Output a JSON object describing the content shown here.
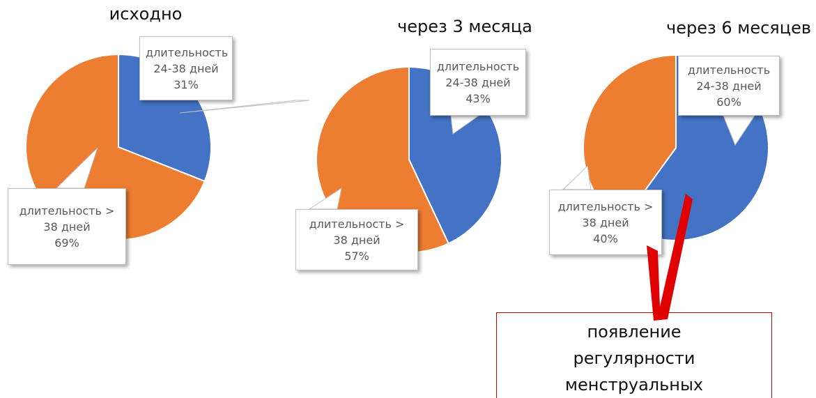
{
  "chart_data": [
    {
      "type": "pie",
      "title": "исходно",
      "categories": [
        "длительность 24-38 дней",
        "длительность > 38 дней"
      ],
      "values": [
        31,
        69
      ],
      "value_labels": [
        "31%",
        "69%"
      ],
      "colors": [
        "#4472c4",
        "#ed7d31"
      ]
    },
    {
      "type": "pie",
      "title": "через 3 месяца",
      "categories": [
        "длительность 24-38 дней",
        "длительность > 38 дней"
      ],
      "values": [
        43,
        57
      ],
      "value_labels": [
        "43%",
        "57%"
      ],
      "colors": [
        "#4472c4",
        "#ed7d31"
      ]
    },
    {
      "type": "pie",
      "title": "через 6 месяцев",
      "categories": [
        "длительность 24-38 дней",
        "длительность > 38 дней"
      ],
      "values": [
        60,
        40
      ],
      "value_labels": [
        "60%",
        "40%"
      ],
      "colors": [
        "#4472c4",
        "#ed7d31"
      ]
    }
  ],
  "annotation": "появление регулярности менструальных кровотечений"
}
